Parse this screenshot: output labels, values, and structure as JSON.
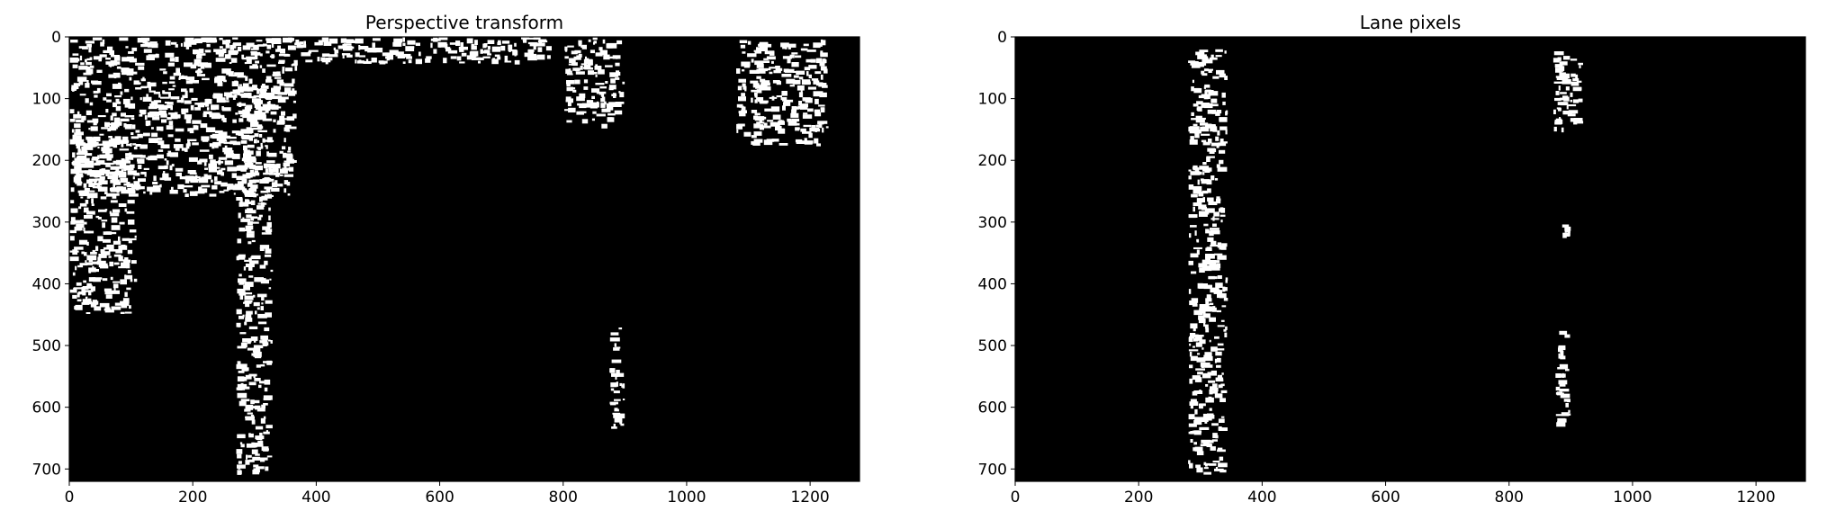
{
  "chart_data": [
    {
      "type": "heatmap",
      "title": "Perspective transform",
      "xlabel": "",
      "ylabel": "",
      "colormap": "binary (black background, white pixels)",
      "colors": {
        "background": "#000000",
        "foreground": "#ffffff"
      },
      "xlim": [
        0,
        1280
      ],
      "ylim": [
        720,
        0
      ],
      "xticks": [
        0,
        200,
        400,
        600,
        800,
        1000,
        1200
      ],
      "yticks": [
        0,
        100,
        200,
        300,
        400,
        500,
        600,
        700
      ],
      "regions": [
        {
          "x": [
            0,
            370
          ],
          "y": [
            0,
            260
          ],
          "desc": "top-left clutter"
        },
        {
          "x": [
            0,
            110
          ],
          "y": [
            160,
            450
          ],
          "desc": "left edge streaks"
        },
        {
          "x": [
            270,
            330
          ],
          "y": [
            60,
            710
          ],
          "desc": "left lane line"
        },
        {
          "x": [
            360,
            790
          ],
          "y": [
            0,
            45
          ],
          "desc": "top band"
        },
        {
          "x": [
            800,
            900
          ],
          "y": [
            0,
            150
          ],
          "desc": "top-right streaks"
        },
        {
          "x": [
            1080,
            1230
          ],
          "y": [
            0,
            180
          ],
          "desc": "far-right streaks"
        },
        {
          "x": [
            875,
            900
          ],
          "y": [
            470,
            635
          ],
          "desc": "right lane line"
        }
      ]
    },
    {
      "type": "heatmap",
      "title": "Lane pixels",
      "xlabel": "",
      "ylabel": "",
      "colormap": "binary (black background, white pixels)",
      "colors": {
        "background": "#000000",
        "foreground": "#ffffff"
      },
      "xlim": [
        0,
        1280
      ],
      "ylim": [
        720,
        0
      ],
      "xticks": [
        0,
        200,
        400,
        600,
        800,
        1000,
        1200
      ],
      "yticks": [
        0,
        100,
        200,
        300,
        400,
        500,
        600,
        700
      ],
      "regions": [
        {
          "x": [
            280,
            345
          ],
          "y": [
            20,
            710
          ],
          "desc": "left lane pixels"
        },
        {
          "x": [
            870,
            920
          ],
          "y": [
            20,
            160
          ],
          "desc": "right lane pixels (top)"
        },
        {
          "x": [
            880,
            900
          ],
          "y": [
            300,
            330
          ],
          "desc": "right lane pixels (mid)"
        },
        {
          "x": [
            875,
            900
          ],
          "y": [
            470,
            635
          ],
          "desc": "right lane pixels (bottom)"
        }
      ]
    }
  ]
}
